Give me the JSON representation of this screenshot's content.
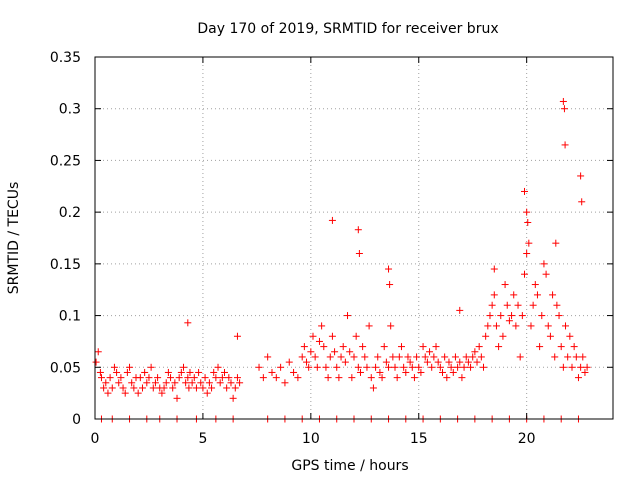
{
  "chart_data": {
    "type": "scatter",
    "title": "Day 170 of 2019, SRMTID for receiver brux",
    "xlabel": "GPS time / hours",
    "ylabel": "SRMTID / TECUs",
    "xlim": [
      0,
      24
    ],
    "ylim": [
      0,
      0.35
    ],
    "grid": true,
    "marker": "+",
    "color": "#ff0000",
    "x_ticks": [
      0,
      5,
      10,
      15,
      20
    ],
    "x_tick_labels": [
      "0",
      "5",
      "10",
      "15",
      "20"
    ],
    "y_ticks": [
      0,
      0.05,
      0.1,
      0.15,
      0.2,
      0.25,
      0.3,
      0.35
    ],
    "y_tick_labels": [
      "0",
      "0.05",
      "0.1",
      "0.15",
      "0.2",
      "0.25",
      "0.3",
      "0.35"
    ],
    "series": [
      {
        "name": "SRMTID",
        "x": [
          0.05,
          0.15,
          0.25,
          0.3,
          0.4,
          0.5,
          0.6,
          0.7,
          0.8,
          0.9,
          1.0,
          1.1,
          1.2,
          1.3,
          1.4,
          1.5,
          1.6,
          1.7,
          1.8,
          1.9,
          2.0,
          2.1,
          2.2,
          2.3,
          2.4,
          2.5,
          2.6,
          2.7,
          2.8,
          2.9,
          3.0,
          3.1,
          3.2,
          3.3,
          3.4,
          3.5,
          3.6,
          3.7,
          3.8,
          3.9,
          4.0,
          4.1,
          4.2,
          4.3,
          4.35,
          4.4,
          4.5,
          4.6,
          4.7,
          4.8,
          4.9,
          5.0,
          5.1,
          5.2,
          5.3,
          5.4,
          5.5,
          5.6,
          5.7,
          5.8,
          5.9,
          6.0,
          6.1,
          6.2,
          6.3,
          6.4,
          6.5,
          6.6,
          6.7,
          7.6,
          7.8,
          8.0,
          8.2,
          8.4,
          8.6,
          8.8,
          9.0,
          9.2,
          9.4,
          9.6,
          9.7,
          9.8,
          9.9,
          10.0,
          10.1,
          10.2,
          10.3,
          10.4,
          10.5,
          10.6,
          10.7,
          10.8,
          10.9,
          11.0,
          11.1,
          11.2,
          11.3,
          11.4,
          11.5,
          11.6,
          11.7,
          11.8,
          11.9,
          12.0,
          12.1,
          12.2,
          12.3,
          12.4,
          12.5,
          12.6,
          12.7,
          12.8,
          12.9,
          13.0,
          13.1,
          13.2,
          13.3,
          13.4,
          13.5,
          13.6,
          13.7,
          13.8,
          13.9,
          14.0,
          14.1,
          14.2,
          14.3,
          14.4,
          14.5,
          14.6,
          14.7,
          14.8,
          14.9,
          15.0,
          15.1,
          15.2,
          15.3,
          15.4,
          15.5,
          15.6,
          15.7,
          15.8,
          15.9,
          16.0,
          16.1,
          16.2,
          16.3,
          16.4,
          16.5,
          16.6,
          16.7,
          16.8,
          16.9,
          17.0,
          17.1,
          17.2,
          17.3,
          17.4,
          17.5,
          17.6,
          17.7,
          17.8,
          17.9,
          18.0,
          18.1,
          18.2,
          18.3,
          18.4,
          18.5,
          18.6,
          18.7,
          18.8,
          18.9,
          19.0,
          19.1,
          19.2,
          19.3,
          19.4,
          19.5,
          19.6,
          19.7,
          19.8,
          19.9,
          20.0,
          20.1,
          20.2,
          20.3,
          20.4,
          20.5,
          20.6,
          20.7,
          20.8,
          20.9,
          21.0,
          21.1,
          21.2,
          21.3,
          21.4,
          21.5,
          21.6,
          21.7,
          21.8,
          21.9,
          22.0,
          22.1,
          22.2,
          22.3,
          22.4,
          22.5,
          22.6,
          22.7,
          22.8,
          4.3,
          6.6,
          11.0,
          12.2,
          12.25,
          13.6,
          13.65,
          16.9,
          18.5,
          19.9,
          20.0,
          20.05,
          21.35,
          21.7,
          21.75,
          21.78,
          22.5,
          22.55,
          0.3,
          0.8,
          1.6,
          2.4,
          3.0,
          3.8,
          4.7,
          5.6,
          6.4,
          8.0,
          8.8,
          9.6,
          10.4,
          11.2,
          12.0,
          12.8,
          13.6,
          14.4,
          15.2,
          16.0,
          16.8,
          17.6,
          18.4,
          19.2,
          20.0,
          20.8,
          21.6,
          22.4
        ],
        "y": [
          0.055,
          0.065,
          0.045,
          0.04,
          0.03,
          0.035,
          0.025,
          0.04,
          0.03,
          0.05,
          0.045,
          0.035,
          0.04,
          0.03,
          0.025,
          0.045,
          0.05,
          0.035,
          0.03,
          0.04,
          0.025,
          0.04,
          0.03,
          0.045,
          0.035,
          0.04,
          0.05,
          0.03,
          0.035,
          0.04,
          0.03,
          0.025,
          0.03,
          0.035,
          0.045,
          0.04,
          0.03,
          0.035,
          0.02,
          0.04,
          0.045,
          0.05,
          0.035,
          0.04,
          0.03,
          0.045,
          0.035,
          0.04,
          0.03,
          0.045,
          0.035,
          0.03,
          0.04,
          0.025,
          0.035,
          0.03,
          0.045,
          0.04,
          0.05,
          0.035,
          0.04,
          0.045,
          0.03,
          0.04,
          0.035,
          0.02,
          0.03,
          0.04,
          0.035,
          0.05,
          0.04,
          0.06,
          0.045,
          0.04,
          0.05,
          0.035,
          0.055,
          0.045,
          0.04,
          0.06,
          0.07,
          0.055,
          0.05,
          0.065,
          0.08,
          0.06,
          0.05,
          0.075,
          0.09,
          0.07,
          0.05,
          0.04,
          0.06,
          0.08,
          0.065,
          0.05,
          0.04,
          0.06,
          0.07,
          0.055,
          0.1,
          0.065,
          0.04,
          0.06,
          0.08,
          0.05,
          0.045,
          0.07,
          0.06,
          0.05,
          0.09,
          0.04,
          0.03,
          0.05,
          0.06,
          0.045,
          0.04,
          0.07,
          0.055,
          0.05,
          0.09,
          0.06,
          0.05,
          0.04,
          0.06,
          0.07,
          0.05,
          0.045,
          0.06,
          0.055,
          0.05,
          0.04,
          0.06,
          0.05,
          0.045,
          0.07,
          0.06,
          0.055,
          0.065,
          0.05,
          0.06,
          0.07,
          0.055,
          0.05,
          0.045,
          0.06,
          0.04,
          0.055,
          0.05,
          0.045,
          0.06,
          0.05,
          0.055,
          0.04,
          0.05,
          0.06,
          0.055,
          0.05,
          0.06,
          0.065,
          0.055,
          0.07,
          0.06,
          0.05,
          0.08,
          0.09,
          0.1,
          0.11,
          0.12,
          0.09,
          0.07,
          0.1,
          0.08,
          0.13,
          0.11,
          0.095,
          0.1,
          0.12,
          0.09,
          0.11,
          0.06,
          0.1,
          0.14,
          0.16,
          0.17,
          0.09,
          0.11,
          0.13,
          0.12,
          0.07,
          0.1,
          0.15,
          0.14,
          0.09,
          0.08,
          0.12,
          0.06,
          0.11,
          0.1,
          0.07,
          0.05,
          0.09,
          0.06,
          0.08,
          0.05,
          0.07,
          0.06,
          0.04,
          0.05,
          0.06,
          0.045,
          0.05,
          0.093,
          0.08,
          0.192,
          0.183,
          0.16,
          0.145,
          0.13,
          0.105,
          0.145,
          0.22,
          0.2,
          0.19,
          0.17,
          0.307,
          0.3,
          0.265,
          0.235,
          0.21,
          0,
          0,
          0,
          0,
          0,
          0,
          0,
          0,
          0,
          0,
          0,
          0,
          0,
          0,
          0,
          0,
          0,
          0,
          0,
          0,
          0,
          0,
          0,
          0,
          0,
          0,
          0,
          0
        ]
      }
    ]
  }
}
